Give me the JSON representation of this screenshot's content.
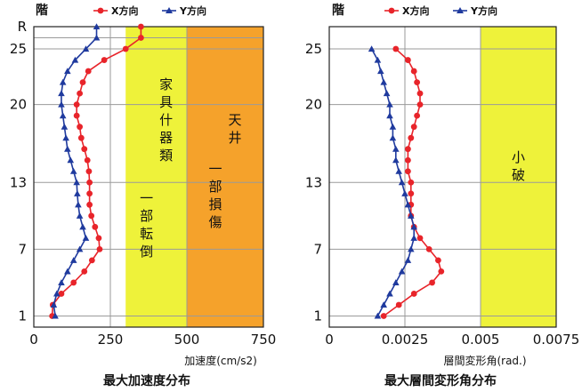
{
  "chart_data": [
    {
      "type": "line",
      "floor_label": "階",
      "legend": [
        "X方向",
        "Y方向"
      ],
      "xlabel": "加速度(cm/s2)",
      "title": "最大加速度分布",
      "xlim": [
        0,
        750
      ],
      "ylim": [
        0,
        27
      ],
      "xticks": [
        "0",
        "250",
        "500",
        "750"
      ],
      "yticks": [
        "1",
        "7",
        "13",
        "20",
        "25",
        "R"
      ],
      "ytick_values": [
        1,
        7,
        13,
        20,
        25,
        27
      ],
      "y": [
        1,
        2,
        3,
        4,
        5,
        6,
        7,
        8,
        9,
        10,
        11,
        12,
        13,
        14,
        15,
        16,
        17,
        18,
        19,
        20,
        21,
        22,
        23,
        24,
        25,
        26,
        27
      ],
      "series": [
        {
          "name": "X方向",
          "color": "#e8242a",
          "marker": "circle",
          "values": [
            60,
            62,
            90,
            130,
            165,
            190,
            215,
            212,
            200,
            188,
            182,
            182,
            182,
            180,
            175,
            165,
            155,
            150,
            140,
            140,
            150,
            160,
            178,
            230,
            300,
            350,
            350
          ]
        },
        {
          "name": "Y方向",
          "color": "#1f3a9e",
          "marker": "triangle",
          "values": [
            70,
            65,
            75,
            90,
            110,
            130,
            150,
            170,
            160,
            150,
            145,
            142,
            140,
            130,
            120,
            110,
            105,
            100,
            95,
            90,
            90,
            95,
            110,
            135,
            170,
            205,
            205
          ]
        }
      ],
      "zones": [
        {
          "range": [
            300,
            500
          ],
          "color": "#eef23a",
          "label": "家具什器類\n一部転倒"
        },
        {
          "range": [
            500,
            750
          ],
          "color": "#f5a22b",
          "label": "天井\n一部損傷"
        }
      ]
    },
    {
      "type": "line",
      "floor_label": "階",
      "legend": [
        "X方向",
        "Y方向"
      ],
      "xlabel": "層間変形角(rad.)",
      "title": "最大層間変形角分布",
      "xlim": [
        0,
        0.0075
      ],
      "ylim": [
        0,
        27
      ],
      "xticks": [
        "0",
        "0.0025",
        "0.005",
        "0.0075"
      ],
      "yticks": [
        "1",
        "7",
        "13",
        "20",
        "25"
      ],
      "ytick_values": [
        1,
        7,
        13,
        20,
        25
      ],
      "y": [
        1,
        2,
        3,
        4,
        5,
        6,
        7,
        8,
        9,
        10,
        11,
        12,
        13,
        14,
        15,
        16,
        17,
        18,
        19,
        20,
        21,
        22,
        23,
        24,
        25
      ],
      "series": [
        {
          "name": "X方向",
          "color": "#e8242a",
          "marker": "circle",
          "values": [
            0.0018,
            0.0023,
            0.0028,
            0.0034,
            0.0037,
            0.0036,
            0.0033,
            0.003,
            0.0028,
            0.0027,
            0.0027,
            0.0027,
            0.0027,
            0.0026,
            0.0026,
            0.0026,
            0.0027,
            0.0028,
            0.0029,
            0.003,
            0.003,
            0.0029,
            0.0028,
            0.0026,
            0.0022
          ]
        },
        {
          "name": "Y方向",
          "color": "#1f3a9e",
          "marker": "triangle",
          "values": [
            0.0016,
            0.0018,
            0.002,
            0.0022,
            0.0024,
            0.0026,
            0.0027,
            0.0028,
            0.0028,
            0.0027,
            0.0026,
            0.0025,
            0.0024,
            0.0023,
            0.0022,
            0.0022,
            0.0021,
            0.0021,
            0.002,
            0.002,
            0.0019,
            0.0018,
            0.0017,
            0.0016,
            0.0014
          ]
        }
      ],
      "zones": [
        {
          "range": [
            0.005,
            0.0075
          ],
          "color": "#eef23a",
          "label": "小\n破"
        }
      ]
    }
  ]
}
